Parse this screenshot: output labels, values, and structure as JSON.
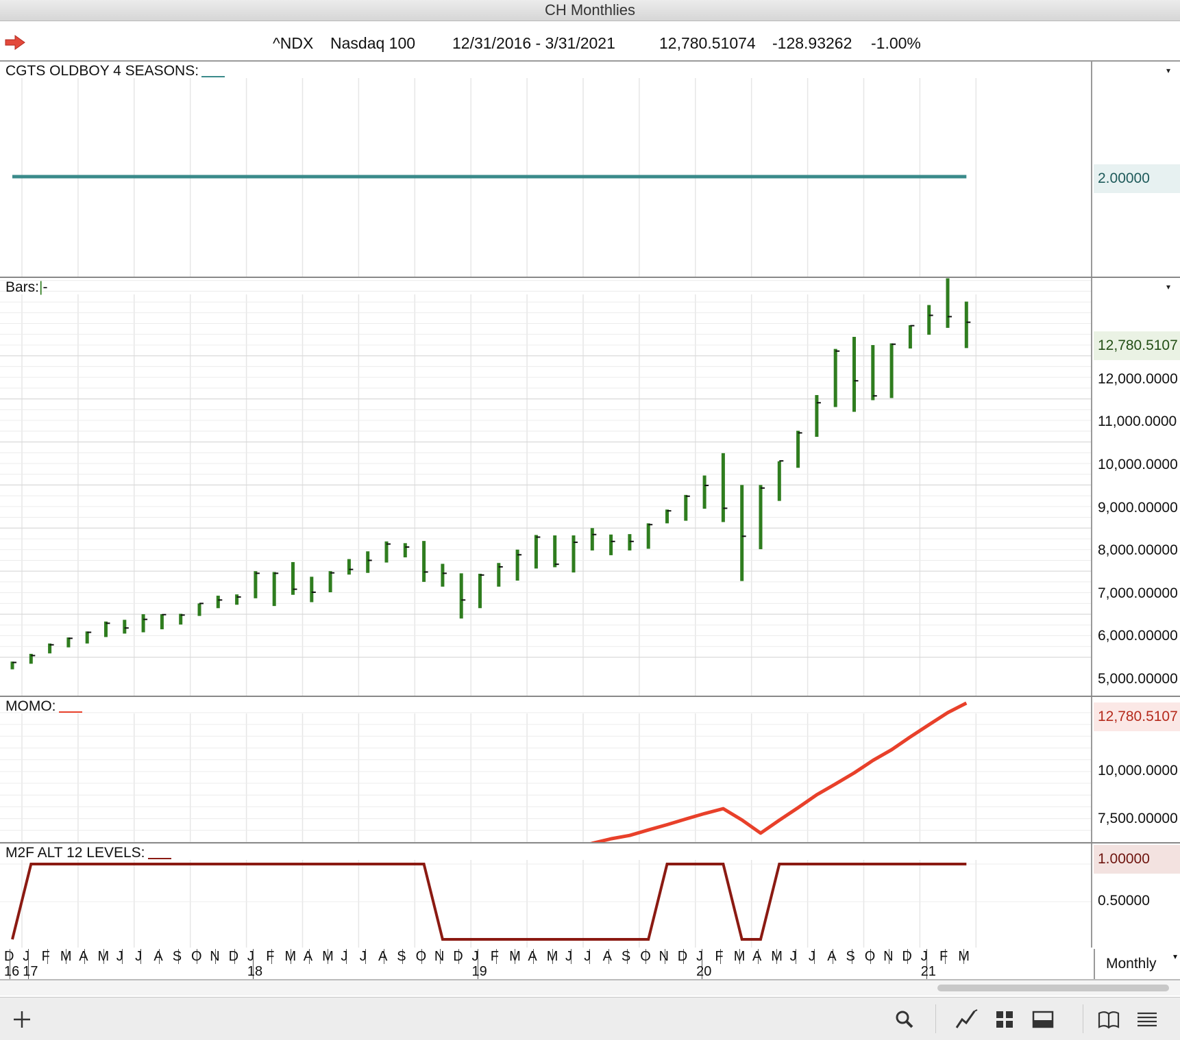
{
  "window": {
    "title": "CH Monthlies"
  },
  "header": {
    "symbol": "^NDX",
    "name": "Nasdaq 100",
    "date_range": "12/31/2016 - 3/31/2021",
    "last": "12,780.51074",
    "change": "-128.93262",
    "change_pct": "-1.00%"
  },
  "panes": {
    "seasons": {
      "label": "CGTS OLDBOY 4 SEASONS:",
      "value_badge": "2.00000",
      "line_color": "#3a8a8a",
      "value": 2.0
    },
    "bars": {
      "label": "Bars:",
      "value_badge": "12,780.5107",
      "bar_color": "#2f7d1f",
      "y_labels": [
        "12,000.0000",
        "11,000.0000",
        "10,000.0000",
        "9,000.00000",
        "8,000.00000",
        "7,000.00000",
        "6,000.00000",
        "5,000.00000"
      ]
    },
    "momo": {
      "label": "MOMO:",
      "value_badge": "12,780.5107",
      "line_color": "#e8402a",
      "y_labels": [
        "10,000.0000",
        "7,500.00000"
      ]
    },
    "m2f": {
      "label": "M2F ALT 12 LEVELS:",
      "value_badge": "1.00000",
      "line_color": "#8b1a12",
      "y_labels": [
        "1.00000",
        "0.50000"
      ]
    }
  },
  "xaxis": {
    "months": [
      "D",
      "J",
      "F",
      "M",
      "A",
      "M",
      "J",
      "J",
      "A",
      "S",
      "O",
      "N",
      "D",
      "J",
      "F",
      "M",
      "A",
      "M",
      "J",
      "J",
      "A",
      "S",
      "O",
      "N",
      "D",
      "J",
      "F",
      "M",
      "A",
      "M",
      "J",
      "J",
      "A",
      "S",
      "O",
      "N",
      "D",
      "J",
      "F",
      "M",
      "A",
      "M",
      "J",
      "J",
      "A",
      "S",
      "O",
      "N",
      "D",
      "J",
      "F",
      "M"
    ],
    "years": [
      {
        "label": "16",
        "index": 0
      },
      {
        "label": "17",
        "index": 1
      },
      {
        "label": "18",
        "index": 13
      },
      {
        "label": "19",
        "index": 25
      },
      {
        "label": "20",
        "index": 37
      },
      {
        "label": "21",
        "index": 49
      }
    ],
    "period": "Monthly"
  },
  "chart_data": [
    {
      "type": "line",
      "title": "CGTS OLDBOY 4 SEASONS",
      "x": [
        "Dec-16",
        "Mar-21"
      ],
      "series": [
        {
          "name": "CGTS OLDBOY 4 SEASONS",
          "values": [
            2,
            2
          ]
        }
      ]
    },
    {
      "type": "ohlc",
      "title": "Bars",
      "categories": [
        "Dec-16",
        "Jan-17",
        "Feb-17",
        "Mar-17",
        "Apr-17",
        "May-17",
        "Jun-17",
        "Jul-17",
        "Aug-17",
        "Sep-17",
        "Oct-17",
        "Nov-17",
        "Dec-17",
        "Jan-18",
        "Feb-18",
        "Mar-18",
        "Apr-18",
        "May-18",
        "Jun-18",
        "Jul-18",
        "Aug-18",
        "Sep-18",
        "Oct-18",
        "Nov-18",
        "Dec-18",
        "Jan-19",
        "Feb-19",
        "Mar-19",
        "Apr-19",
        "May-19",
        "Jun-19",
        "Jul-19",
        "Aug-19",
        "Sep-19",
        "Oct-19",
        "Nov-19",
        "Dec-19",
        "Jan-20",
        "Feb-20",
        "Mar-20",
        "Apr-20",
        "May-20",
        "Jun-20",
        "Jul-20",
        "Aug-20",
        "Sep-20",
        "Oct-20",
        "Nov-20",
        "Dec-20",
        "Jan-21",
        "Feb-21",
        "Mar-21"
      ],
      "high": [
        4900,
        5080,
        5320,
        5460,
        5600,
        5830,
        5870,
        6000,
        6000,
        6010,
        6250,
        6430,
        6460,
        7000,
        6980,
        7210,
        6870,
        7000,
        7280,
        7460,
        7690,
        7650,
        7700,
        7170,
        6950,
        6940,
        7190,
        7500,
        7840,
        7830,
        7830,
        8000,
        7850,
        7860,
        8110,
        8430,
        8770,
        9220,
        9740,
        9000,
        9000,
        9550,
        10260,
        11090,
        12160,
        12440,
        12250,
        12290,
        12710,
        13180,
        13800,
        13260
      ],
      "low": [
        4720,
        4850,
        5090,
        5230,
        5320,
        5470,
        5550,
        5580,
        5650,
        5760,
        5960,
        6140,
        6220,
        6370,
        6190,
        6450,
        6280,
        6510,
        6920,
        6960,
        7200,
        7320,
        6750,
        6640,
        5900,
        6140,
        6640,
        6780,
        7060,
        7090,
        6970,
        7480,
        7370,
        7480,
        7520,
        8110,
        8170,
        8450,
        8140,
        6770,
        7510,
        8630,
        9400,
        10120,
        10810,
        10700,
        10970,
        11020,
        12170,
        12490,
        12650,
        12180
      ],
      "close": [
        4880,
        5040,
        5290,
        5440,
        5580,
        5790,
        5680,
        5880,
        5990,
        5980,
        6250,
        6330,
        6400,
        6950,
        6950,
        6580,
        6510,
        6960,
        7040,
        7250,
        7630,
        7560,
        6980,
        6950,
        6330,
        6910,
        7100,
        7380,
        7790,
        7160,
        7670,
        7850,
        7690,
        7690,
        8080,
        8400,
        8740,
        8990,
        8460,
        7810,
        8930,
        9560,
        10210,
        10910,
        12110,
        11420,
        11070,
        12270,
        12700,
        12940,
        12910,
        12780
      ]
    },
    {
      "type": "line",
      "title": "MOMO",
      "x": [
        "Dec-16",
        "Jan-17",
        "Feb-17",
        "Mar-17",
        "Apr-17",
        "May-17",
        "Jun-17",
        "Jul-17",
        "Aug-17",
        "Sep-17",
        "Oct-17",
        "Nov-17",
        "Dec-17",
        "Jan-18",
        "Feb-18",
        "Mar-18",
        "Apr-18",
        "May-18",
        "Jun-18",
        "Jul-18",
        "Aug-18",
        "Sep-18",
        "Oct-18",
        "Nov-18",
        "Dec-18",
        "Jan-19",
        "Feb-19",
        "Mar-19",
        "Apr-19",
        "May-19",
        "Jun-19",
        "Jul-19",
        "Aug-19",
        "Sep-19",
        "Oct-19",
        "Nov-19",
        "Dec-19",
        "Jan-20",
        "Feb-20",
        "Mar-20",
        "Apr-20",
        "May-20",
        "Jun-20",
        "Jul-20",
        "Aug-20",
        "Sep-20",
        "Oct-20",
        "Nov-20",
        "Dec-20",
        "Jan-21",
        "Feb-21",
        "Mar-21"
      ],
      "series": [
        {
          "name": "MOMO",
          "values": [
            5000,
            5010,
            5070,
            5130,
            5190,
            5240,
            5290,
            5300,
            5350,
            5410,
            5460,
            5510,
            5560,
            5570,
            5630,
            5690,
            5740,
            5790,
            5840,
            5870,
            5870,
            5930,
            5560,
            5250,
            4910,
            5200,
            5450,
            5630,
            5930,
            6220,
            6510,
            6810,
            7050,
            7230,
            7520,
            7800,
            8100,
            8390,
            8650,
            8050,
            7350,
            8040,
            8700,
            9390,
            9960,
            10550,
            11210,
            11780,
            12460,
            13110,
            13750,
            14260
          ]
        }
      ]
    },
    {
      "type": "line",
      "title": "M2F ALT 12 LEVELS",
      "x": [
        "Dec-16",
        "Jan-17",
        "Feb-17",
        "Mar-17",
        "Apr-17",
        "May-17",
        "Jun-17",
        "Jul-17",
        "Aug-17",
        "Sep-17",
        "Oct-17",
        "Nov-17",
        "Dec-17",
        "Jan-18",
        "Feb-18",
        "Mar-18",
        "Apr-18",
        "May-18",
        "Jun-18",
        "Jul-18",
        "Aug-18",
        "Sep-18",
        "Oct-18",
        "Nov-18",
        "Dec-18",
        "Jan-19",
        "Feb-19",
        "Mar-19",
        "Apr-19",
        "May-19",
        "Jun-19",
        "Jul-19",
        "Aug-19",
        "Sep-19",
        "Oct-19",
        "Nov-19",
        "Dec-19",
        "Jan-20",
        "Feb-20",
        "Mar-20",
        "Apr-20",
        "May-20",
        "Jun-20",
        "Jul-20",
        "Aug-20",
        "Sep-20",
        "Oct-20",
        "Nov-20",
        "Dec-20",
        "Jan-21",
        "Feb-21",
        "Mar-21"
      ],
      "series": [
        {
          "name": "M2F ALT 12 LEVELS",
          "values": [
            0,
            1,
            1,
            1,
            1,
            1,
            1,
            1,
            1,
            1,
            1,
            1,
            1,
            1,
            1,
            1,
            1,
            1,
            1,
            1,
            1,
            1,
            1,
            0,
            0,
            0,
            0,
            0,
            0,
            0,
            0,
            0,
            0,
            0,
            0,
            1,
            1,
            1,
            1,
            0,
            0,
            1,
            1,
            1,
            1,
            1,
            1,
            1,
            1,
            1,
            1,
            1
          ]
        }
      ]
    }
  ]
}
